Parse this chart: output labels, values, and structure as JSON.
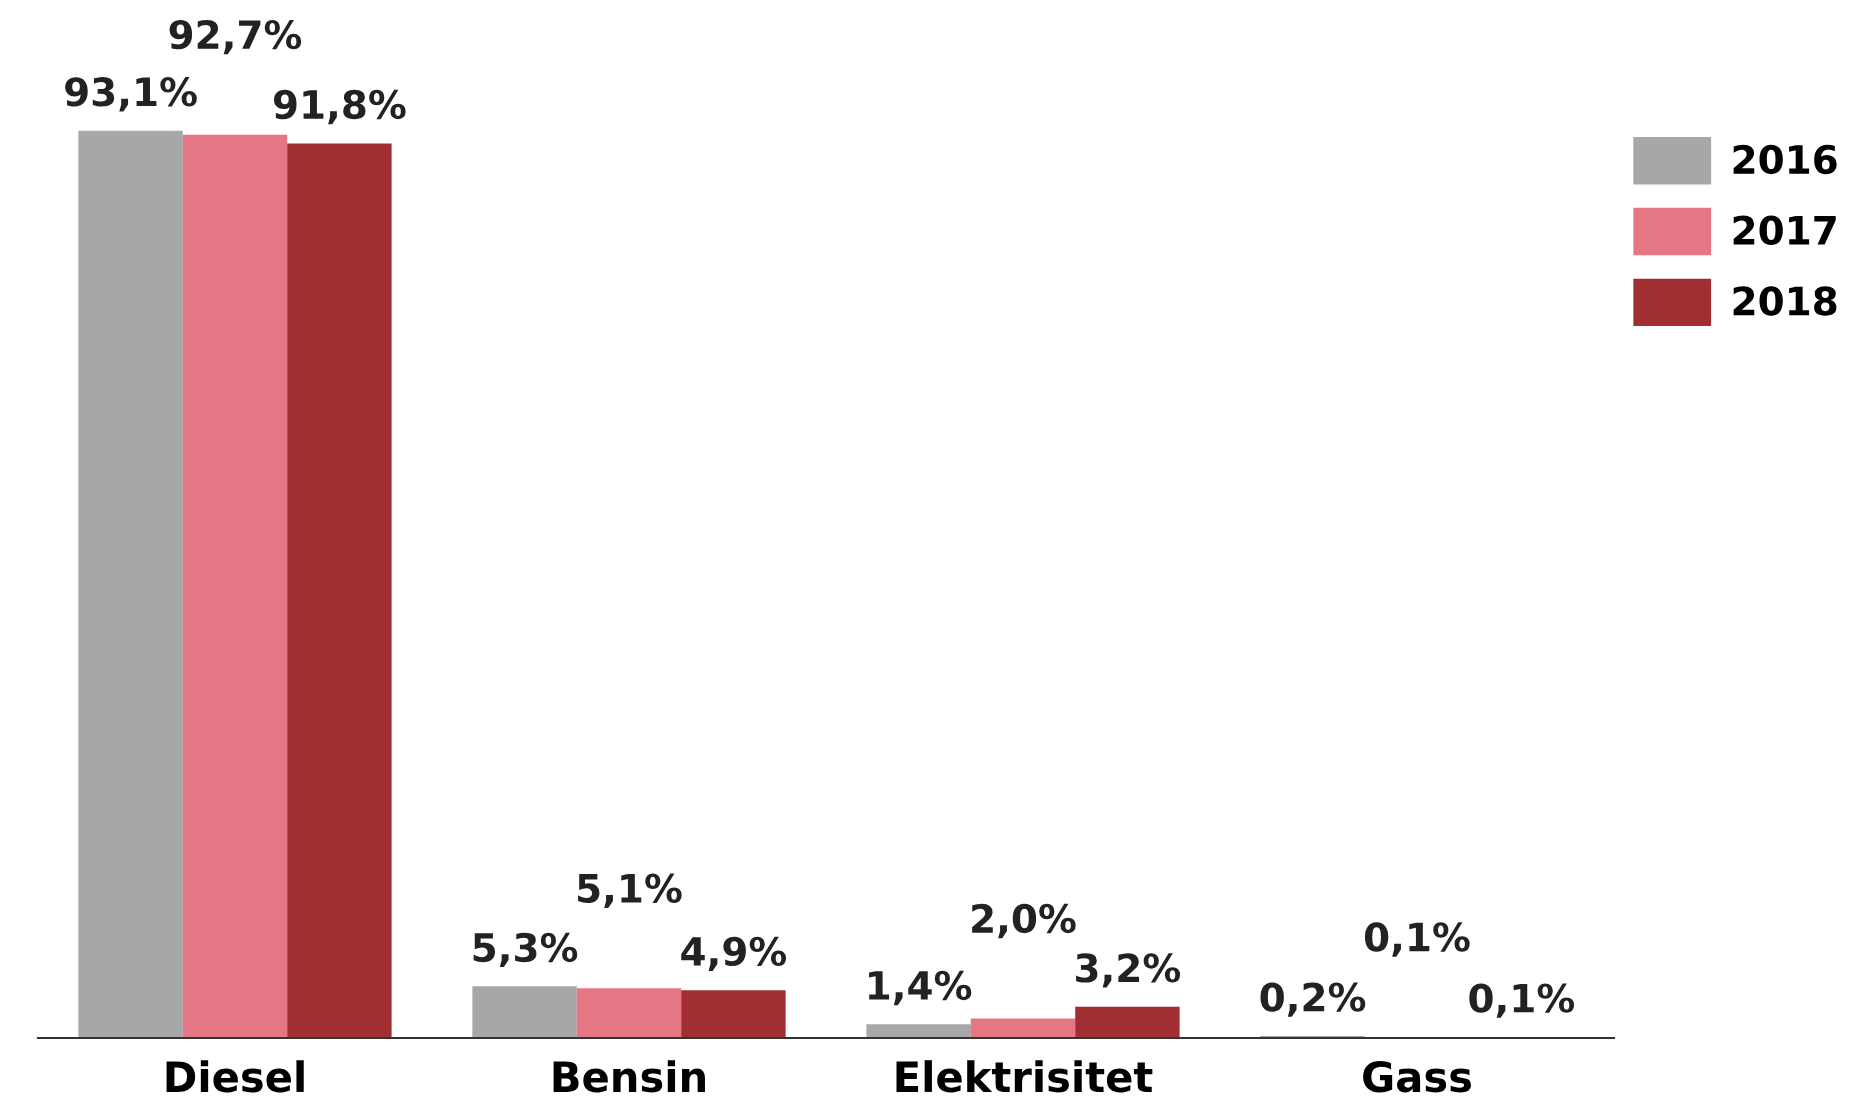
{
  "chart_data": {
    "type": "bar",
    "categories": [
      "Diesel",
      "Bensin",
      "Elektrisitet",
      "Gass"
    ],
    "series": [
      {
        "name": "2016",
        "color": "#a5a7a8",
        "values": [
          93.1,
          5.3,
          1.4,
          0.2
        ],
        "value_labels": [
          "93,1%",
          "5,3%",
          "1,4%",
          "0,2%"
        ]
      },
      {
        "name": "2017",
        "color": "#e57784",
        "values": [
          92.7,
          5.1,
          2.0,
          0.1
        ],
        "value_labels": [
          "92,7%",
          "5,1%",
          "2,0%",
          "0,1%"
        ]
      },
      {
        "name": "2018",
        "color": "#a12f32",
        "values": [
          91.8,
          4.9,
          3.2,
          0.1
        ],
        "value_labels": [
          "91,8%",
          "4,9%",
          "3,2%",
          "0,1%"
        ]
      }
    ],
    "legend": "top right",
    "tick_labels": "x",
    "grid": false
  }
}
